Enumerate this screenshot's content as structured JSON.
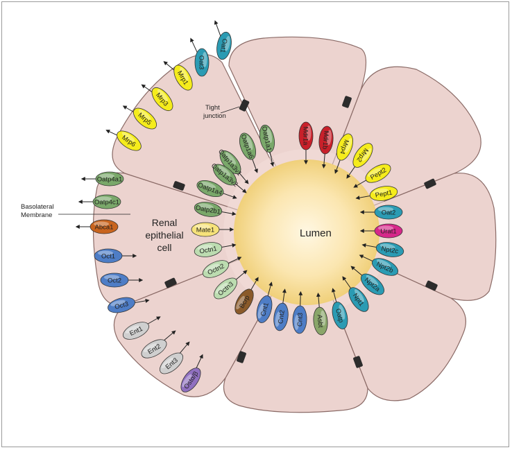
{
  "labels": {
    "lumen": "Lumen",
    "cell_line1": "Renal",
    "cell_line2": "epithelial",
    "cell_line3": "cell",
    "tight_junction_line1": "Tight",
    "tight_junction_line2": "junction",
    "basolateral_line1": "Basolateral",
    "basolateral_line2": "Membrane"
  },
  "colors": {
    "cell_fill": "#ecd3cf",
    "cell_stroke": "#8a6a66",
    "lumen_center": "#fff3d6",
    "lumen_edge": "#f0d89a",
    "green": "#7aa86a",
    "light_green": "#bcdcb0",
    "yellow": "#f5ec1c",
    "red": "#c8202a",
    "blue": "#4e7dc6",
    "teal": "#2b9bb3",
    "orange": "#c8641e",
    "magenta": "#d6288a",
    "brown": "#8a5a2a",
    "grey": "#cfcfcf",
    "light_yellow": "#f6e27a",
    "purple": "#9070c0",
    "olive": "#8aa66a"
  },
  "transporters": [
    {
      "name": "Oat1",
      "color": "teal",
      "side": "basolateral"
    },
    {
      "name": "Oat3",
      "color": "teal",
      "side": "basolateral"
    },
    {
      "name": "Mrp1",
      "color": "yellow",
      "side": "basolateral"
    },
    {
      "name": "Mrp3",
      "color": "yellow",
      "side": "basolateral"
    },
    {
      "name": "Mrp5",
      "color": "yellow",
      "side": "basolateral"
    },
    {
      "name": "Mrp6",
      "color": "yellow",
      "side": "basolateral"
    },
    {
      "name": "Oatp4a1",
      "color": "green",
      "side": "basolateral"
    },
    {
      "name": "Oatp4c1",
      "color": "green",
      "side": "basolateral"
    },
    {
      "name": "Abca1",
      "color": "orange",
      "side": "basolateral"
    },
    {
      "name": "Oct1",
      "color": "blue",
      "side": "basolateral"
    },
    {
      "name": "Oct2",
      "color": "blue",
      "side": "basolateral"
    },
    {
      "name": "Oct3",
      "color": "blue",
      "side": "basolateral"
    },
    {
      "name": "Ent1",
      "color": "grey",
      "side": "basolateral"
    },
    {
      "name": "Ent2",
      "color": "grey",
      "side": "basolateral"
    },
    {
      "name": "Ent3",
      "color": "grey",
      "side": "basolateral"
    },
    {
      "name": "Ostα/β",
      "color": "purple",
      "side": "basolateral"
    },
    {
      "name": "Oatp1a6",
      "color": "green",
      "side": "apical"
    },
    {
      "name": "Oatp1a3v1",
      "color": "green",
      "side": "apical"
    },
    {
      "name": "Oatp1a3v2",
      "color": "green",
      "side": "apical"
    },
    {
      "name": "Oatp1a1",
      "color": "green",
      "side": "apical"
    },
    {
      "name": "Oatp1a4",
      "color": "green",
      "side": "apical"
    },
    {
      "name": "Oatp2b1",
      "color": "green",
      "side": "apical"
    },
    {
      "name": "Mate1",
      "color": "light_yellow",
      "side": "apical"
    },
    {
      "name": "Octn1",
      "color": "light_green",
      "side": "apical"
    },
    {
      "name": "Octn2",
      "color": "light_green",
      "side": "apical"
    },
    {
      "name": "Octn3",
      "color": "light_green",
      "side": "apical"
    },
    {
      "name": "Bcrp",
      "color": "brown",
      "side": "apical"
    },
    {
      "name": "Cnt1",
      "color": "blue",
      "side": "apical"
    },
    {
      "name": "Cnt2",
      "color": "blue",
      "side": "apical"
    },
    {
      "name": "Cnt3",
      "color": "blue",
      "side": "apical"
    },
    {
      "name": "Asbt",
      "color": "olive",
      "side": "apical"
    },
    {
      "name": "Oatp",
      "color": "teal",
      "side": "apical"
    },
    {
      "name": "Npt1",
      "color": "teal",
      "side": "apical"
    },
    {
      "name": "Npt2a",
      "color": "teal",
      "side": "apical"
    },
    {
      "name": "Npt2b",
      "color": "teal",
      "side": "apical"
    },
    {
      "name": "Npt2c",
      "color": "teal",
      "side": "apical"
    },
    {
      "name": "Urat1",
      "color": "magenta",
      "side": "apical"
    },
    {
      "name": "Oat2",
      "color": "teal",
      "side": "apical"
    },
    {
      "name": "Pept1",
      "color": "yellow",
      "side": "apical"
    },
    {
      "name": "Pept2",
      "color": "yellow",
      "side": "apical"
    },
    {
      "name": "Mrp2",
      "color": "yellow",
      "side": "apical"
    },
    {
      "name": "Mrp4",
      "color": "yellow",
      "side": "apical"
    },
    {
      "name": "Mdr1a",
      "color": "red",
      "side": "apical"
    },
    {
      "name": "Mdr1b",
      "color": "red",
      "side": "apical"
    }
  ]
}
